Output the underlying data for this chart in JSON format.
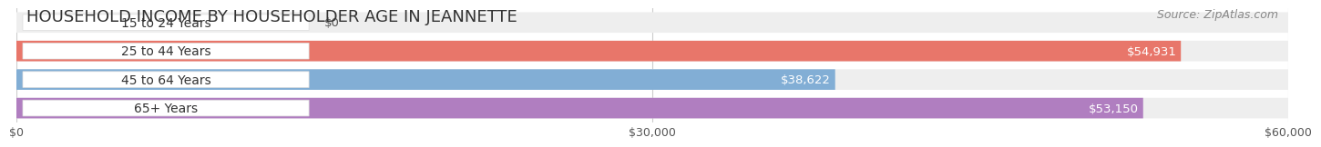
{
  "title": "HOUSEHOLD INCOME BY HOUSEHOLDER AGE IN JEANNETTE",
  "source": "Source: ZipAtlas.com",
  "categories": [
    "15 to 24 Years",
    "25 to 44 Years",
    "45 to 64 Years",
    "65+ Years"
  ],
  "values": [
    0,
    54931,
    38622,
    53150
  ],
  "labels": [
    "$0",
    "$54,931",
    "$38,622",
    "$53,150"
  ],
  "bar_colors": [
    "#f2c99e",
    "#e8766a",
    "#82aed5",
    "#b07ec0"
  ],
  "bg_colors": [
    "#eeeeee",
    "#eeeeee",
    "#eeeeee",
    "#eeeeee"
  ],
  "xlim": [
    0,
    60000
  ],
  "xticks": [
    0,
    30000,
    60000
  ],
  "xticklabels": [
    "$0",
    "$30,000",
    "$60,000"
  ],
  "bar_height": 0.72,
  "title_fontsize": 13,
  "source_fontsize": 9,
  "label_fontsize": 9.5,
  "tick_fontsize": 9,
  "category_fontsize": 10
}
